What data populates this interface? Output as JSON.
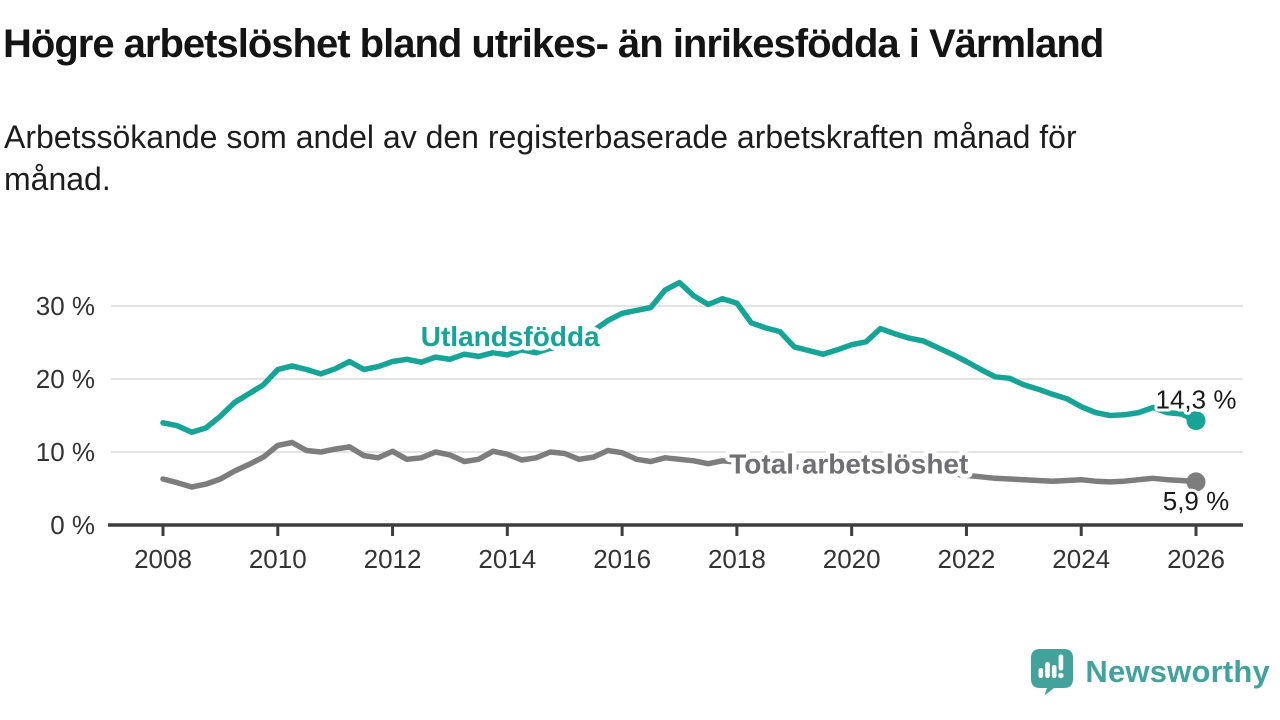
{
  "header": {
    "title": "Högre arbetslöshet bland utrikes- än inrikesfödda i Värmland",
    "subtitle_lines": [
      "Arbetssökande som andel av den registerbaserade arbetskraften månad för",
      "månad."
    ]
  },
  "branding": {
    "name": "Newsworthy",
    "logo_icon": "speech-bubble-bar-chart",
    "color": "#43a39c"
  },
  "chart_data": {
    "type": "line",
    "y_unit": "%",
    "xlim": [
      2008,
      2026
    ],
    "ylim": [
      0,
      34
    ],
    "grid": "horizontal",
    "legend_position": "inline-labels",
    "xticks": [
      2008,
      2010,
      2012,
      2014,
      2016,
      2018,
      2020,
      2022,
      2024,
      2026
    ],
    "xtick_labels": [
      "2008",
      "2010",
      "2012",
      "2014",
      "2016",
      "2018",
      "2020",
      "2022",
      "2024",
      "2026"
    ],
    "yticks": [
      0,
      10,
      20,
      30
    ],
    "ytick_labels": [
      "0 %",
      "10 %",
      "20 %",
      "30 %"
    ],
    "x": [
      2008,
      2008.25,
      2008.5,
      2008.75,
      2009,
      2009.25,
      2009.5,
      2009.75,
      2010,
      2010.25,
      2010.5,
      2010.75,
      2011,
      2011.25,
      2011.5,
      2011.75,
      2012,
      2012.25,
      2012.5,
      2012.75,
      2013,
      2013.25,
      2013.5,
      2013.75,
      2014,
      2014.25,
      2014.5,
      2014.75,
      2015,
      2015.25,
      2015.5,
      2015.75,
      2016,
      2016.25,
      2016.5,
      2016.75,
      2017,
      2017.25,
      2017.5,
      2017.75,
      2018,
      2018.25,
      2018.5,
      2018.75,
      2019,
      2019.25,
      2019.5,
      2019.75,
      2020,
      2020.25,
      2020.5,
      2020.75,
      2021,
      2021.25,
      2021.5,
      2021.75,
      2022,
      2022.25,
      2022.5,
      2022.75,
      2023,
      2023.25,
      2023.5,
      2023.75,
      2024,
      2024.25,
      2024.5,
      2024.75,
      2025,
      2025.25,
      2025.5,
      2025.75,
      2026
    ],
    "series": [
      {
        "name": "Utlandsfödda",
        "color": "#16a496",
        "label_color": "#16a496",
        "end_value": 14.3,
        "end_label": {
          "text": "14,3 %",
          "x": 2026,
          "y": 17.2
        },
        "line_label": {
          "text": "Utlandsfödda",
          "x": 2014.05,
          "y": 25.9
        },
        "values": [
          14.0,
          13.6,
          12.7,
          13.3,
          14.9,
          16.8,
          18.0,
          19.2,
          21.3,
          21.8,
          21.3,
          20.7,
          21.4,
          22.4,
          21.3,
          21.7,
          22.4,
          22.7,
          22.3,
          23.0,
          22.7,
          23.4,
          23.1,
          23.6,
          23.3,
          24.0,
          23.6,
          24.2,
          24.4,
          25.3,
          26.6,
          28.0,
          29.0,
          29.4,
          29.8,
          32.2,
          33.2,
          31.4,
          30.2,
          31.0,
          30.4,
          27.7,
          27.0,
          26.5,
          24.4,
          23.9,
          23.4,
          24.0,
          24.7,
          25.1,
          26.9,
          26.2,
          25.6,
          25.2,
          24.3,
          23.4,
          22.4,
          21.3,
          20.3,
          20.1,
          19.2,
          18.6,
          17.9,
          17.3,
          16.2,
          15.4,
          15.0,
          15.1,
          15.4,
          16.1,
          15.4,
          15.2,
          14.3
        ]
      },
      {
        "name": "Total arbetslöshet",
        "color": "#7d7d7d",
        "label_color": "#6f6f74",
        "end_value": 5.9,
        "end_label": {
          "text": "5,9 %",
          "x": 2026,
          "y": 3.3
        },
        "line_label": {
          "text": "Total arbetslöshet",
          "x": 2019.95,
          "y": 8.4
        },
        "values": [
          6.3,
          5.8,
          5.2,
          5.6,
          6.3,
          7.4,
          8.3,
          9.3,
          10.9,
          11.3,
          10.2,
          10.0,
          10.4,
          10.7,
          9.5,
          9.2,
          10.1,
          9.0,
          9.2,
          10.0,
          9.6,
          8.7,
          9.0,
          10.1,
          9.7,
          8.9,
          9.2,
          10.0,
          9.8,
          9.0,
          9.3,
          10.2,
          9.9,
          9.0,
          8.7,
          9.2,
          9.0,
          8.8,
          8.4,
          8.8,
          8.6,
          8.0,
          7.8,
          8.2,
          8.0,
          7.7,
          7.6,
          8.0,
          8.0,
          8.6,
          8.8,
          8.5,
          8.2,
          7.9,
          7.4,
          7.0,
          6.8,
          6.6,
          6.4,
          6.3,
          6.2,
          6.1,
          6.0,
          6.1,
          6.2,
          6.0,
          5.9,
          6.0,
          6.2,
          6.4,
          6.2,
          6.1,
          5.9
        ]
      }
    ]
  }
}
